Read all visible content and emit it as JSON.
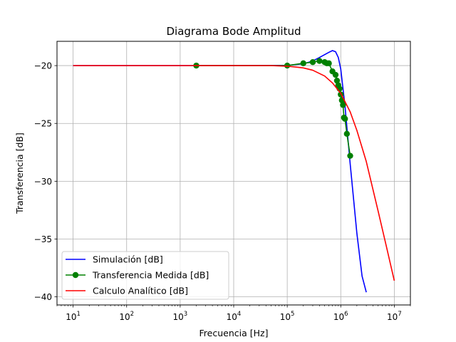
{
  "chart_data": {
    "type": "line",
    "title": "Diagrama Bode Amplitud",
    "xlabel": "Frecuencia [Hz]",
    "ylabel": "Transferencia [dB]",
    "x_scale": "log",
    "xlim": [
      5,
      20000000
    ],
    "ylim": [
      -40.7,
      -17.9
    ],
    "x_ticks": [
      {
        "value": 10,
        "base": "10",
        "exp": "1"
      },
      {
        "value": 100,
        "base": "10",
        "exp": "2"
      },
      {
        "value": 1000,
        "base": "10",
        "exp": "3"
      },
      {
        "value": 10000,
        "base": "10",
        "exp": "4"
      },
      {
        "value": 100000,
        "base": "10",
        "exp": "5"
      },
      {
        "value": 1000000,
        "base": "10",
        "exp": "6"
      },
      {
        "value": 10000000,
        "base": "10",
        "exp": "7"
      }
    ],
    "y_ticks": [
      {
        "value": -20,
        "label": "−20"
      },
      {
        "value": -25,
        "label": "−25"
      },
      {
        "value": -30,
        "label": "−30"
      },
      {
        "value": -35,
        "label": "−35"
      },
      {
        "value": -40,
        "label": "−40"
      }
    ],
    "grid": true,
    "legend_position": "lower-left",
    "series": [
      {
        "name": "Simulación [dB]",
        "color": "#0000ff",
        "marker": "none",
        "x": [
          10,
          100,
          1000,
          10000,
          100000,
          200000,
          300000,
          400000,
          500000,
          600000,
          700000,
          800000,
          900000,
          1000000,
          1200000,
          1500000,
          2000000,
          2500000,
          3000000
        ],
        "y": [
          -20,
          -20,
          -20,
          -20,
          -19.98,
          -19.85,
          -19.6,
          -19.3,
          -19.05,
          -18.85,
          -18.7,
          -18.8,
          -19.3,
          -20.3,
          -23.5,
          -28.5,
          -34.5,
          -38.2,
          -39.6
        ]
      },
      {
        "name": "Transferencia Medida [dB]",
        "color": "#008000",
        "marker": "circle",
        "x": [
          2000,
          100000,
          200000,
          300000,
          400000,
          500000,
          550000,
          600000,
          700000,
          800000,
          850000,
          900000,
          950000,
          1000000,
          1050000,
          1100000,
          1150000,
          1200000,
          1300000,
          1500000
        ],
        "y": [
          -20,
          -20,
          -19.8,
          -19.7,
          -19.6,
          -19.7,
          -19.8,
          -19.8,
          -20.5,
          -20.8,
          -21.3,
          -21.7,
          -22,
          -22.5,
          -23,
          -23.4,
          -24.5,
          -24.6,
          -25.9,
          -27.8
        ]
      },
      {
        "name": "Calculo Analítico [dB]",
        "color": "#ff0000",
        "marker": "none",
        "x": [
          10,
          1000,
          10000,
          50000,
          100000,
          200000,
          300000,
          500000,
          700000,
          1000000,
          1500000,
          2000000,
          3000000,
          5000000,
          7000000,
          10000000
        ],
        "y": [
          -20,
          -20,
          -20,
          -20,
          -20.05,
          -20.2,
          -20.4,
          -20.9,
          -21.5,
          -22.4,
          -24,
          -25.6,
          -28.3,
          -32.6,
          -35.5,
          -38.6
        ]
      }
    ]
  }
}
